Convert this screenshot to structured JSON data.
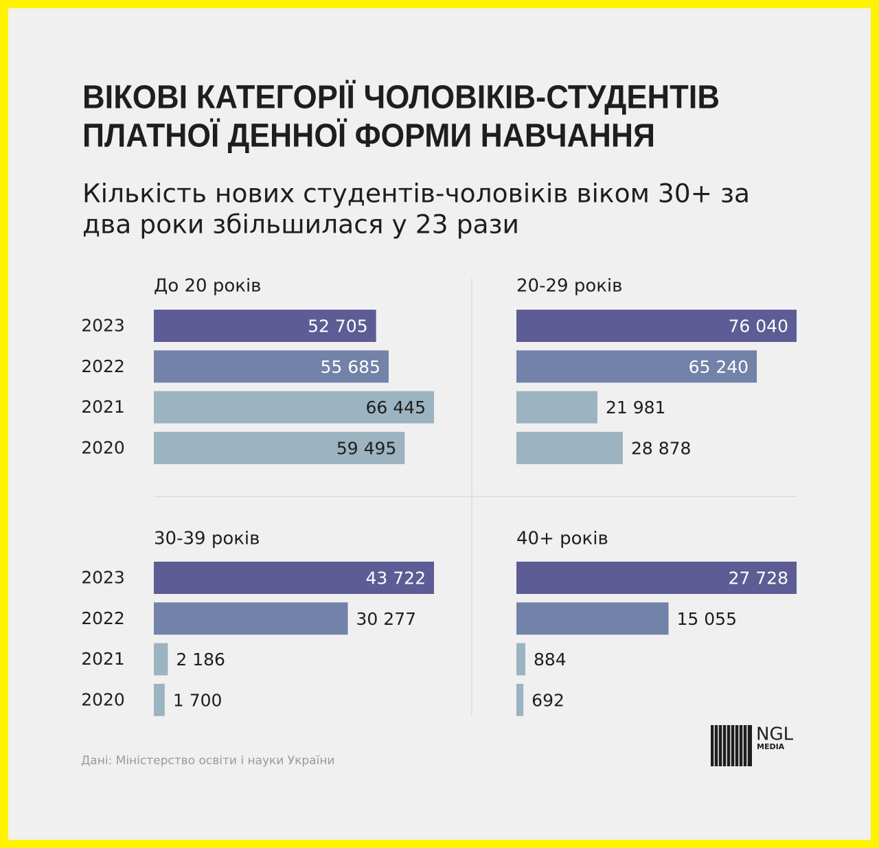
{
  "title": [
    "ВІКОВІ КАТЕГОРІЇ ЧОЛОВІКІВ-СТУДЕНТІВ",
    "ПЛАТНОЇ ДЕННОЇ ФОРМИ НАВЧАННЯ"
  ],
  "subtitle": [
    "Кількість нових студентів-чоловіків віком 30+ за",
    "два роки збільшилася у 23 рази"
  ],
  "source": "Дані: Міністерство освіти і науки України",
  "logo": {
    "name": "NGL",
    "sub": "MEDIA"
  },
  "chart_data": [
    {
      "type": "bar",
      "title": "До 20 років",
      "categories": [
        "2023",
        "2022",
        "2021",
        "2020"
      ],
      "values": [
        52705,
        55685,
        66445,
        59495
      ],
      "value_labels": [
        "52 705",
        "55 685",
        "66 445",
        "59 495"
      ],
      "colors": [
        "#5d5c95",
        "#7282a8",
        "#9cb3c1",
        "#9cb3c1"
      ],
      "xlim": [
        0,
        66445
      ]
    },
    {
      "type": "bar",
      "title": "20-29 років",
      "values": [
        76040,
        65240,
        21981,
        28878
      ],
      "value_labels": [
        "76 040",
        "65 240",
        "21 981",
        "28 878"
      ],
      "colors": [
        "#5d5c95",
        "#7282a8",
        "#9cb3c1",
        "#9cb3c1"
      ],
      "xlim": [
        0,
        76040
      ]
    },
    {
      "type": "bar",
      "title": "30-39 років",
      "categories": [
        "2023",
        "2022",
        "2021",
        "2020"
      ],
      "values": [
        43722,
        30277,
        2186,
        1700
      ],
      "value_labels": [
        "43 722",
        "30 277",
        "2 186",
        "1 700"
      ],
      "colors": [
        "#5d5c95",
        "#7282a8",
        "#9cb3c1",
        "#9cb3c1"
      ],
      "xlim": [
        0,
        43722
      ]
    },
    {
      "type": "bar",
      "title": "40+ років",
      "values": [
        27728,
        15055,
        884,
        692
      ],
      "value_labels": [
        "27 728",
        "15 055",
        "884",
        "692"
      ],
      "colors": [
        "#5d5c95",
        "#7282a8",
        "#9cb3c1",
        "#9cb3c1"
      ],
      "xlim": [
        0,
        27728
      ]
    }
  ]
}
